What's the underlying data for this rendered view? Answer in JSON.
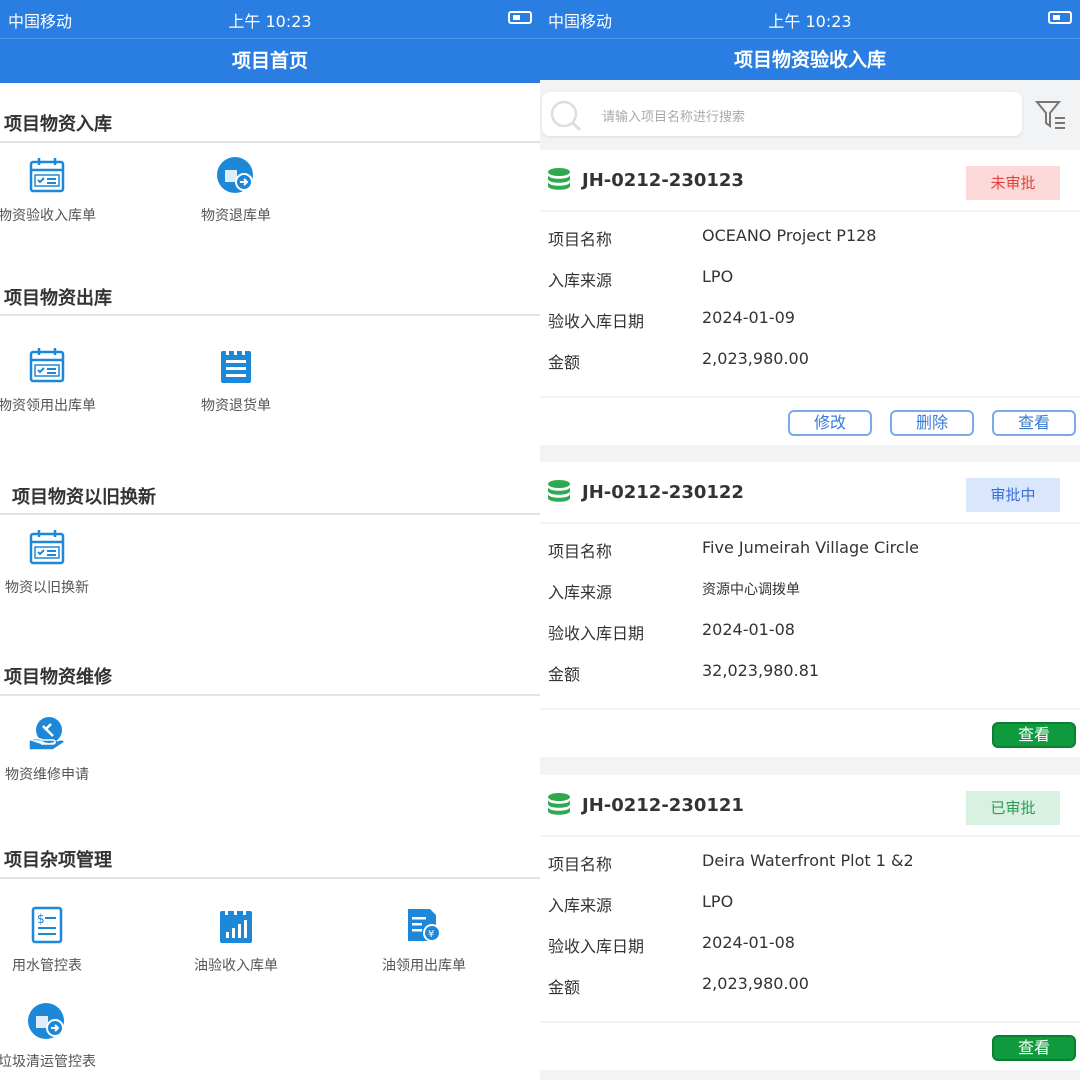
{
  "status_bar": {
    "carrier": "中国移动",
    "time": "上午 10:23"
  },
  "left": {
    "title": "项目首页",
    "sections": [
      {
        "title": "项目物资入库",
        "items": [
          {
            "label": "物资验收入库单",
            "icon": "calendar-check-icon"
          },
          {
            "label": "物资退库单",
            "icon": "return-stock-icon"
          }
        ]
      },
      {
        "title": "项目物资出库",
        "items": [
          {
            "label": "物资领用出库单",
            "icon": "calendar-check-icon"
          },
          {
            "label": "物资退货单",
            "icon": "notepad-icon"
          }
        ]
      },
      {
        "title": "项目物资以旧换新",
        "items": [
          {
            "label": "物资以旧换新",
            "icon": "calendar-check-icon"
          }
        ]
      },
      {
        "title": "项目物资维修",
        "items": [
          {
            "label": "物资维修申请",
            "icon": "repair-hand-icon"
          }
        ]
      },
      {
        "title": "项目杂项管理",
        "items": [
          {
            "label": "用水管控表",
            "icon": "bill-icon"
          },
          {
            "label": "油验收入库单",
            "icon": "bar-chart-icon"
          },
          {
            "label": "油领用出库单",
            "icon": "yuan-document-icon"
          },
          {
            "label": "垃圾清运管控表",
            "icon": "return-stock-icon"
          }
        ]
      }
    ]
  },
  "right": {
    "title": "项目物资验收入库",
    "search_placeholder": "请输入项目名称进行搜索",
    "field_labels": [
      "项目名称",
      "入库来源",
      "验收入库日期",
      "金额"
    ],
    "actions": {
      "edit": "修改",
      "delete": "删除",
      "view": "查看"
    },
    "records": [
      {
        "code": "JH-0212-230123",
        "status": "未审批",
        "status_color": "#e8403a",
        "status_bg": "#fbd9d9",
        "values": [
          "OCEANO Project P128",
          "LPO",
          "2024-01-09",
          "2,023,980.00"
        ],
        "actions": [
          "edit",
          "delete",
          "view"
        ]
      },
      {
        "code": "JH-0212-230122",
        "status": "审批中",
        "status_color": "#3a6fd6",
        "status_bg": "#d9e6fb",
        "values": [
          "Five Jumeirah Village Circle",
          "资源中心调拨单",
          "2024-01-08",
          "32,023,980.81"
        ],
        "actions": [
          "view"
        ]
      },
      {
        "code": "JH-0212-230121",
        "status": "已审批",
        "status_color": "#2e9a55",
        "status_bg": "#d8f1e0",
        "values": [
          "Deira Waterfront Plot 1 &2",
          "LPO",
          "2024-01-08",
          "2,023,980.00"
        ],
        "actions": [
          "view"
        ]
      }
    ]
  },
  "colors": {
    "brand": "#2a7de1",
    "icon": "#1e88d8",
    "db_icon": "#2fa84f"
  }
}
